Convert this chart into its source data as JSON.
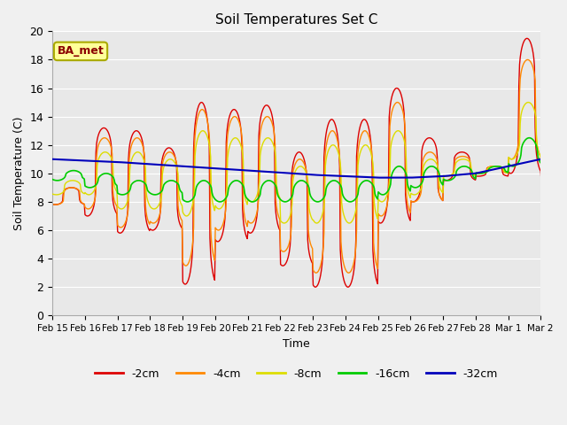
{
  "title": "Soil Temperatures Set C",
  "xlabel": "Time",
  "ylabel": "Soil Temperature (C)",
  "ylim": [
    0,
    20
  ],
  "annotation": "BA_met",
  "series_colors": [
    "#dd0000",
    "#ff8800",
    "#dddd00",
    "#00cc00",
    "#0000bb"
  ],
  "series_labels": [
    "-2cm",
    "-4cm",
    "-8cm",
    "-16cm",
    "-32cm"
  ],
  "x_tick_labels": [
    "Feb 15",
    "Feb 16",
    "Feb 17",
    "Feb 18",
    "Feb 19",
    "Feb 20",
    "Feb 21",
    "Feb 22",
    "Feb 23",
    "Feb 24",
    "Feb 25",
    "Feb 26",
    "Feb 27",
    "Feb 28",
    "Mar 1",
    "Mar 2"
  ],
  "background_color": "#e8e8e8",
  "grid_color": "#ffffff",
  "fig_bg": "#f0f0f0"
}
